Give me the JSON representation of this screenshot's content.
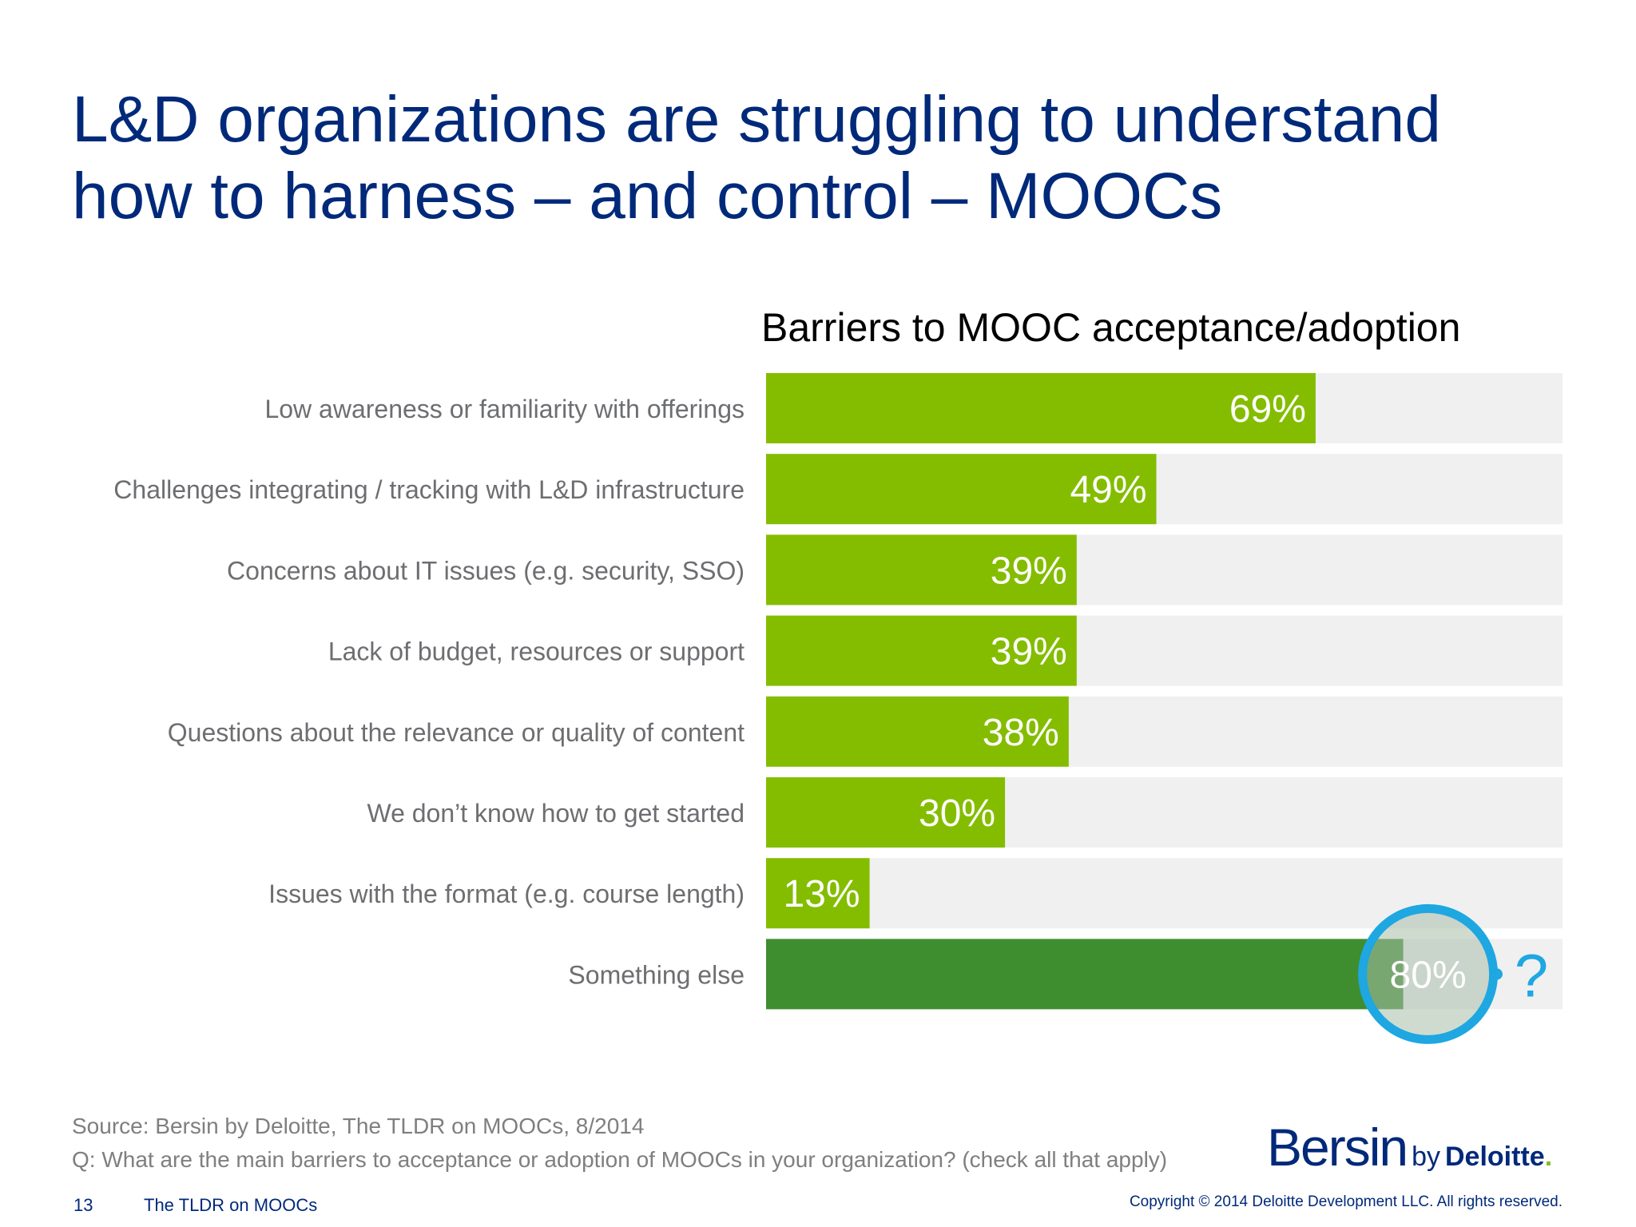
{
  "slide": {
    "title_line1": "L&D organizations are struggling to understand",
    "title_line2": "how to harness – and control – MOOCs"
  },
  "chart_data": {
    "type": "bar",
    "orientation": "horizontal",
    "title": "Barriers to MOOC acceptance/adoption",
    "categories": [
      "Low awareness or familiarity with offerings",
      "Challenges integrating / tracking with L&D infrastructure",
      "Concerns about IT issues (e.g. security, SSO)",
      "Lack of budget, resources or support",
      "Questions about the relevance or quality of content",
      "We don’t know how to get started",
      "Issues with the format (e.g. course length)",
      "Something else"
    ],
    "values": [
      69,
      49,
      39,
      39,
      38,
      30,
      13,
      80
    ],
    "value_labels": [
      "69%",
      "49%",
      "39%",
      "39%",
      "38%",
      "30%",
      "13%",
      "80%"
    ],
    "xlim": [
      0,
      100
    ],
    "highlight_index": 7,
    "annotation": "?",
    "colors": {
      "bar": "#84bd00",
      "highlight_bar": "#3e8d2f",
      "track": "#f0f0f1",
      "circle": "#1ea7e1",
      "label_text": "#6d6e71",
      "value_text": "#ffffff"
    }
  },
  "footer": {
    "source": "Source: Bersin by Deloitte, The TLDR on MOOCs, 8/2014",
    "question": "Q: What are the main barriers to acceptance or adoption of MOOCs in your organization? (check all that apply)",
    "page_number": "13",
    "deck_title": "The TLDR on MOOCs",
    "copyright": "Copyright © 2014 Deloitte Development LLC. All rights reserved."
  },
  "logo": {
    "bersin": "Bersin",
    "by": "by",
    "deloitte": "Deloitte",
    "dot": "."
  }
}
